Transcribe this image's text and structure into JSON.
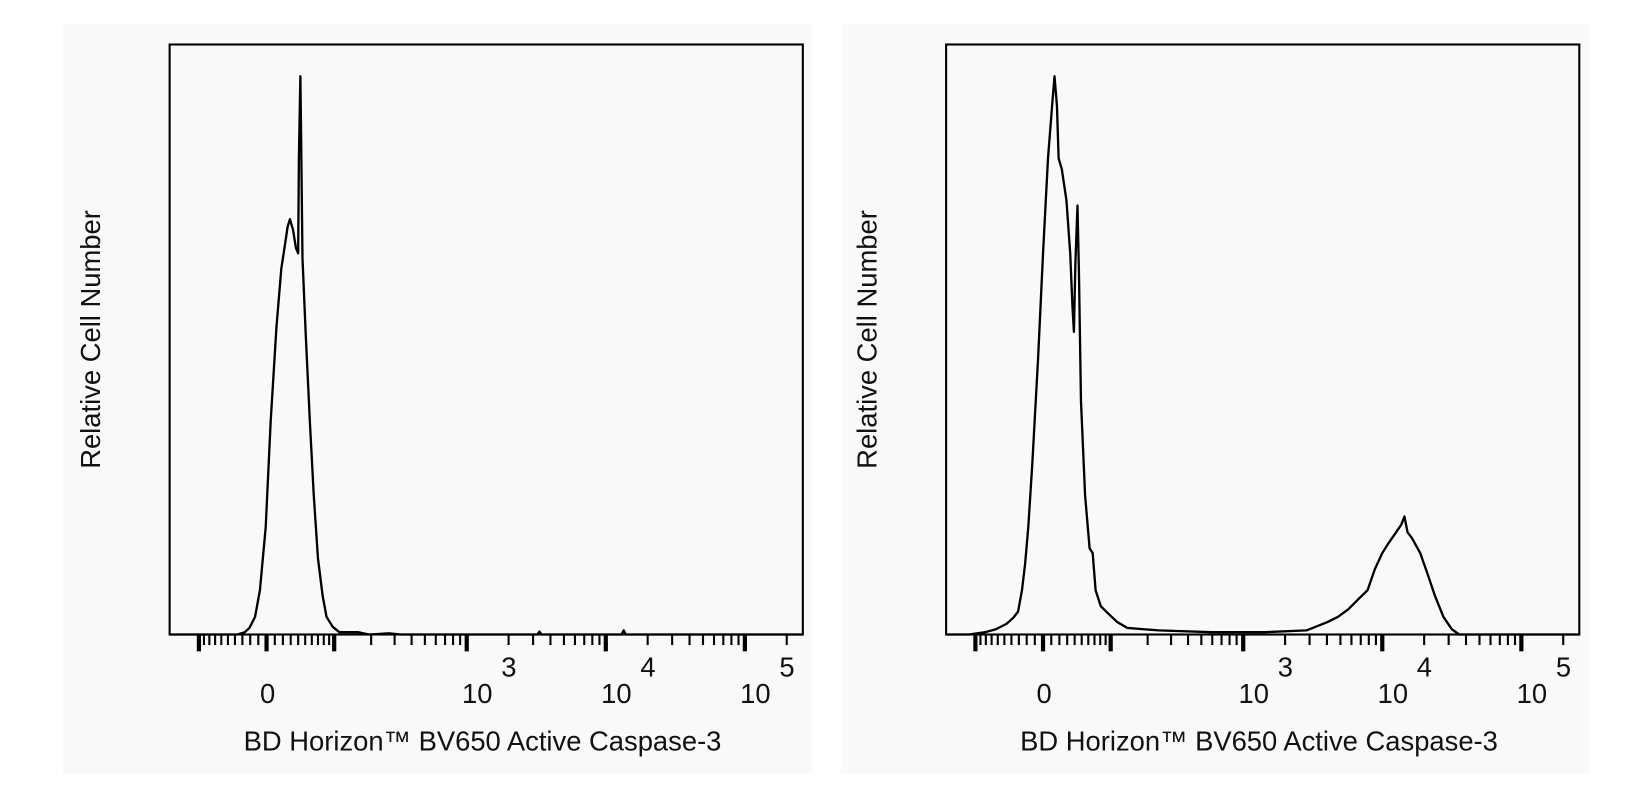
{
  "chart_data": [
    {
      "type": "line",
      "panel": "left",
      "xlabel": "BD Horizon™ BV650 Active Caspase-3",
      "ylabel": "Relative Cell Number",
      "x_scale": "biexponential",
      "xlim": [
        -175,
        261000
      ],
      "ylim": [
        0,
        100
      ],
      "grid": false,
      "x_tick_labels": [
        {
          "value": 0,
          "base": "0",
          "exp": ""
        },
        {
          "value": 1000,
          "base": "10",
          "exp": "3"
        },
        {
          "value": 10000,
          "base": "10",
          "exp": "4"
        },
        {
          "value": 100000,
          "base": "10",
          "exp": "5"
        }
      ],
      "series": [
        {
          "color": "#000000",
          "x": [
            -175,
            -37,
            -27,
            -21,
            -14,
            -8,
            -1,
            5,
            12,
            18,
            22,
            26,
            29,
            33,
            37,
            40,
            41,
            43,
            44,
            46,
            51,
            57,
            63,
            70,
            78,
            85,
            97,
            111,
            158,
            192,
            276,
            331,
            3220,
            3330,
            3450,
            13000,
            13450,
            13930,
            261000
          ],
          "y": [
            0,
            0,
            0.4,
            1.1,
            3.0,
            7.5,
            18.2,
            36.1,
            52.1,
            62.0,
            65.5,
            69.1,
            70.4,
            68.6,
            65.5,
            64.6,
            80.7,
            94.6,
            86.1,
            63.8,
            50.4,
            36.1,
            23.6,
            12.9,
            6.6,
            3.0,
            1.3,
            0.4,
            0.4,
            0,
            0.2,
            0,
            0,
            0.5,
            0,
            0,
            0.7,
            0,
            0
          ]
        }
      ]
    },
    {
      "type": "line",
      "panel": "right",
      "xlabel": "BD Horizon™ BV650 Active Caspase-3",
      "ylabel": "Relative Cell Number",
      "x_scale": "biexponential",
      "xlim": [
        -175,
        265500
      ],
      "ylim": [
        0,
        100
      ],
      "grid": false,
      "x_tick_labels": [
        {
          "value": 0,
          "base": "0",
          "exp": ""
        },
        {
          "value": 1000,
          "base": "10",
          "exp": "3"
        },
        {
          "value": 10000,
          "base": "10",
          "exp": "4"
        },
        {
          "value": 100000,
          "base": "10",
          "exp": "5"
        }
      ],
      "series": [
        {
          "color": "#000000",
          "x": [
            -175,
            -114,
            -81,
            -63,
            -47,
            -37,
            -31,
            -26,
            -22,
            -18,
            -13,
            -6,
            0,
            6,
            11,
            14,
            17,
            19,
            23,
            29,
            34,
            37,
            39,
            41,
            44,
            46,
            49,
            55,
            62,
            67,
            72,
            81,
            91,
            114,
            139,
            243,
            592,
            1419,
            2850,
            4040,
            4810,
            5720,
            6810,
            7830,
            8850,
            10000,
            11100,
            12540,
            13680,
            14420,
            15200,
            16300,
            18750,
            21200,
            23900,
            27500,
            31600,
            35700,
            265500
          ],
          "y": [
            0,
            0,
            0.4,
            0.9,
            1.8,
            2.9,
            3.9,
            7.5,
            12.0,
            18.2,
            28.9,
            46.8,
            64.6,
            80.7,
            89.6,
            94.6,
            89.6,
            80.7,
            78.9,
            73.6,
            64.6,
            55.7,
            51.3,
            62.9,
            72.7,
            61.1,
            39.6,
            23.6,
            14.6,
            13.8,
            7.5,
            4.8,
            3.9,
            2.1,
            1.1,
            0.7,
            0.4,
            0.4,
            0.7,
            2.1,
            3.0,
            4.3,
            6.1,
            7.5,
            11.1,
            13.8,
            15.5,
            17.3,
            18.6,
            20.0,
            17.3,
            16.4,
            13.8,
            10.2,
            6.6,
            3.0,
            0.9,
            0,
            0
          ]
        }
      ]
    }
  ]
}
